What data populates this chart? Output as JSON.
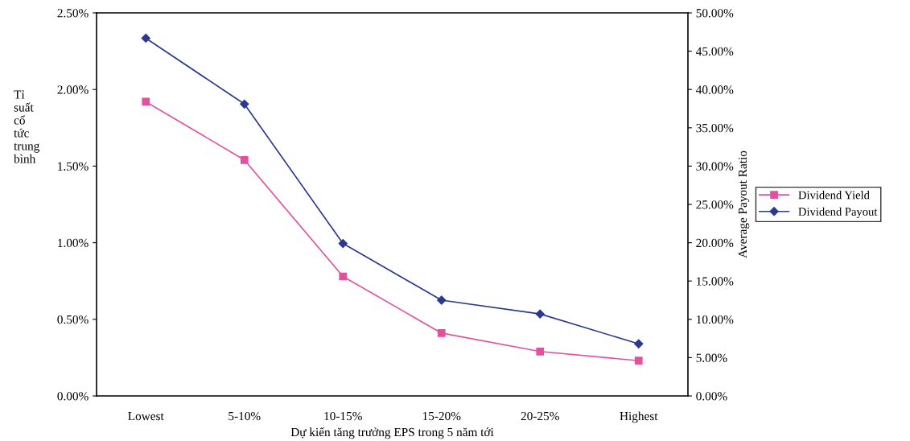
{
  "chart_data": {
    "type": "line",
    "xlabel": "Dự kiến tăng trưởng EPS trong 5 năm tới",
    "ylabel": "Tỉ\nsuất\ncổ\ntức\ntrung\nbình",
    "y2label": "Average Payout Ratio",
    "categories": [
      "Lowest",
      "5-10%",
      "10-15%",
      "15-20%",
      "20-25%",
      "Highest"
    ],
    "series": [
      {
        "name": "Dividend Yield",
        "color": "#e3509f",
        "marker": "square",
        "values": [
          1.92,
          1.54,
          0.78,
          0.41,
          0.29,
          0.23
        ]
      },
      {
        "name": "Dividend Payout",
        "color": "#2b3990",
        "marker": "diamond",
        "axis": "y2",
        "values": [
          46.7,
          38.1,
          19.9,
          12.5,
          10.7,
          6.8
        ]
      }
    ],
    "ylim": [
      0,
      2.5
    ],
    "yticks": [
      {
        "value": 0,
        "label": "0.00%"
      },
      {
        "value": 0.5,
        "label": "0.50%"
      },
      {
        "value": 1.0,
        "label": "1.00%"
      },
      {
        "value": 1.5,
        "label": "1.50%"
      },
      {
        "value": 2.0,
        "label": "2.00%"
      },
      {
        "value": 2.5,
        "label": "2.50%"
      }
    ],
    "y2lim": [
      0,
      50
    ],
    "y2ticks": [
      {
        "value": 0,
        "label": "0.00%"
      },
      {
        "value": 5,
        "label": "5.00%"
      },
      {
        "value": 10,
        "label": "10.00%"
      },
      {
        "value": 15,
        "label": "15.00%"
      },
      {
        "value": 20,
        "label": "20.00%"
      },
      {
        "value": 25,
        "label": "25.00%"
      },
      {
        "value": 30,
        "label": "30.00%"
      },
      {
        "value": 35,
        "label": "35.00%"
      },
      {
        "value": 40,
        "label": "40.00%"
      },
      {
        "value": 45,
        "label": "45.00%"
      },
      {
        "value": 50,
        "label": "50.00%"
      }
    ],
    "grid": false,
    "legend": "right",
    "line_style": "solid"
  }
}
